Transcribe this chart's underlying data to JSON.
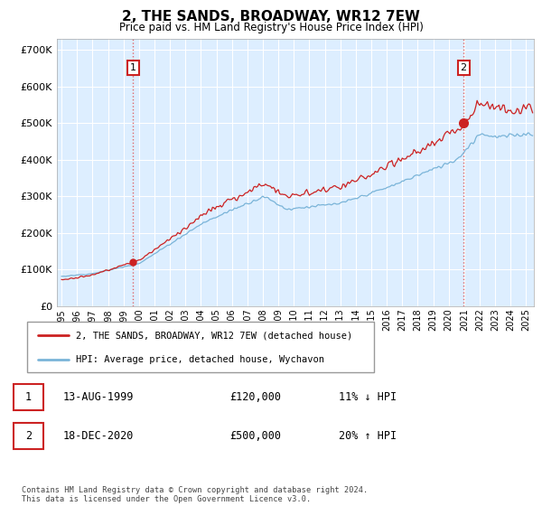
{
  "title": "2, THE SANDS, BROADWAY, WR12 7EW",
  "subtitle": "Price paid vs. HM Land Registry's House Price Index (HPI)",
  "ytick_vals": [
    0,
    100000,
    200000,
    300000,
    400000,
    500000,
    600000,
    700000
  ],
  "ylim": [
    0,
    730000
  ],
  "xlim_start": 1994.7,
  "xlim_end": 2025.5,
  "hpi_color": "#7ab4d8",
  "price_color": "#cc2222",
  "dot_color": "#cc2222",
  "vline_color": "#dd4444",
  "bg_color": "#ddeeff",
  "grid_color": "#ffffff",
  "legend_line1": "2, THE SANDS, BROADWAY, WR12 7EW (detached house)",
  "legend_line2": "HPI: Average price, detached house, Wychavon",
  "table_row1": [
    "1",
    "13-AUG-1999",
    "£120,000",
    "11% ↓ HPI"
  ],
  "table_row2": [
    "2",
    "18-DEC-2020",
    "£500,000",
    "20% ↑ HPI"
  ],
  "footer": "Contains HM Land Registry data © Crown copyright and database right 2024.\nThis data is licensed under the Open Government Licence v3.0.",
  "sale1_x": 1999.62,
  "sale1_y": 120000,
  "sale2_x": 2020.96,
  "sale2_y": 500000
}
